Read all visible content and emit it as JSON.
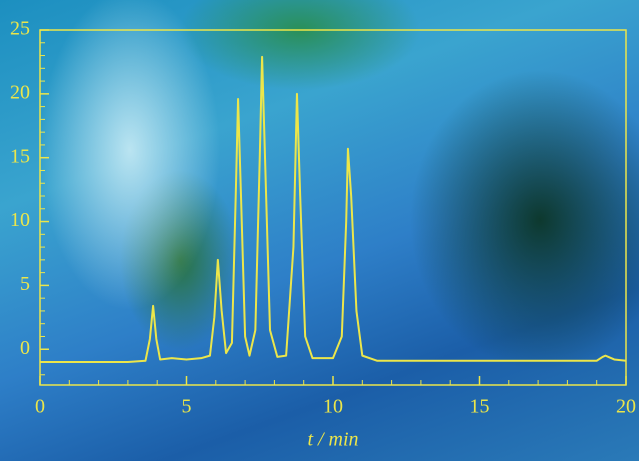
{
  "chart_data": {
    "type": "line",
    "x_label": "t / min",
    "x": [
      0,
      1,
      2,
      3,
      3.6,
      3.75,
      3.86,
      3.97,
      4.1,
      4.5,
      5,
      5.5,
      5.8,
      5.95,
      6.07,
      6.2,
      6.35,
      6.55,
      6.68,
      6.76,
      6.86,
      7.0,
      7.15,
      7.35,
      7.5,
      7.58,
      7.68,
      7.85,
      8.1,
      8.4,
      8.65,
      8.77,
      8.88,
      9.05,
      9.3,
      10.0,
      10.3,
      10.45,
      10.51,
      10.62,
      10.8,
      11.0,
      11.5,
      13,
      15,
      17,
      19,
      19.2,
      19.3,
      19.4,
      19.6,
      20
    ],
    "series": [
      {
        "color": "#ece64a",
        "values": [
          -1.0,
          -1.0,
          -1.0,
          -1.0,
          -0.9,
          0.8,
          3.4,
          0.8,
          -0.8,
          -0.7,
          -0.8,
          -0.7,
          -0.5,
          2.5,
          7.0,
          3.0,
          -0.3,
          0.5,
          12,
          19.6,
          12,
          1.0,
          -0.5,
          1.5,
          15,
          22.9,
          15,
          1.5,
          -0.6,
          -0.5,
          8,
          20.0,
          12,
          1.0,
          -0.7,
          -0.7,
          1.0,
          10,
          15.7,
          12,
          3,
          -0.5,
          -0.9,
          -0.9,
          -0.9,
          -0.9,
          -0.9,
          -0.6,
          -0.5,
          -0.6,
          -0.8,
          -0.9
        ]
      }
    ],
    "xlim": [
      0,
      20
    ],
    "ylim": [
      -2.8,
      25
    ],
    "xticks": [
      0,
      5,
      10,
      15,
      20
    ],
    "yticks": [
      0,
      5,
      10,
      15,
      20,
      25
    ],
    "x_minor_ticks": [
      1,
      2,
      3,
      4,
      6,
      7,
      8,
      9,
      11,
      12,
      13,
      14,
      16,
      17,
      18,
      19
    ],
    "y_minor_ticks": [
      -2,
      -1,
      1,
      2,
      3,
      4,
      6,
      7,
      8,
      9,
      11,
      12,
      13,
      14,
      16,
      17,
      18,
      19,
      21,
      22,
      23,
      24
    ],
    "grid": false
  }
}
